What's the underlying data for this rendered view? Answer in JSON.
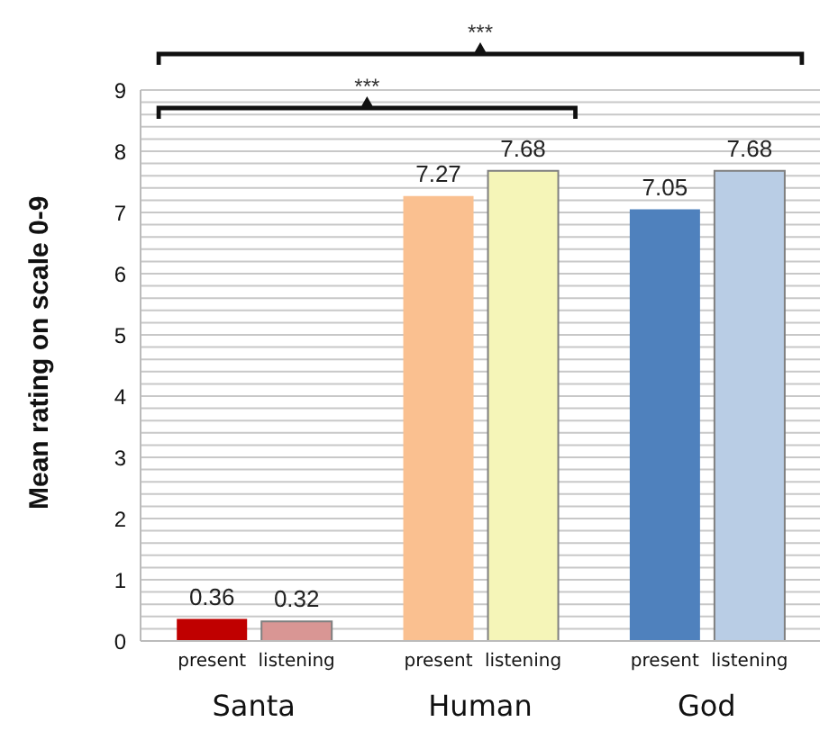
{
  "chart_data": {
    "type": "bar",
    "ylabel": "Mean rating on scale 0-9",
    "categories": [
      "Santa",
      "Human",
      "God"
    ],
    "series": [
      {
        "name": "present",
        "colors": [
          "#c00000",
          "#fac090",
          "#4f81bd"
        ],
        "values": [
          0.36,
          7.27,
          7.05
        ]
      },
      {
        "name": "listening",
        "colors": [
          "#d99694",
          "#f5f5b8",
          "#b9cde5"
        ],
        "values": [
          0.32,
          7.68,
          7.68
        ]
      }
    ],
    "ylim": [
      0,
      9
    ],
    "yticks": [
      0,
      {
        "value": 0.2,
        "label": null
      },
      {
        "value": 0.4,
        "label": null
      },
      {
        "value": 0.6,
        "label": null
      },
      {
        "value": 0.8,
        "label": null
      },
      1,
      {
        "value": 1.2,
        "label": null
      },
      {
        "value": 1.4,
        "label": null
      },
      {
        "value": 1.6,
        "label": null
      },
      {
        "value": 1.8,
        "label": null
      },
      2,
      {
        "value": 2.2,
        "label": null
      },
      {
        "value": 2.4,
        "label": null
      },
      {
        "value": 2.6,
        "label": null
      },
      {
        "value": 2.8,
        "label": null
      },
      3,
      {
        "value": 3.2,
        "label": null
      },
      {
        "value": 3.4,
        "label": null
      },
      {
        "value": 3.6,
        "label": null
      },
      {
        "value": 3.8,
        "label": null
      },
      4,
      {
        "value": 4.2,
        "label": null
      },
      {
        "value": 4.4,
        "label": null
      },
      {
        "value": 4.6,
        "label": null
      },
      {
        "value": 4.8,
        "label": null
      },
      5,
      {
        "value": 5.2,
        "label": null
      },
      {
        "value": 5.4,
        "label": null
      },
      {
        "value": 5.6,
        "label": null
      },
      {
        "value": 5.8,
        "label": null
      },
      6,
      {
        "value": 6.2,
        "label": null
      },
      {
        "value": 6.4,
        "label": null
      },
      {
        "value": 6.6,
        "label": null
      },
      {
        "value": 6.8,
        "label": null
      },
      7,
      {
        "value": 7.2,
        "label": null
      },
      {
        "value": 7.4,
        "label": null
      },
      {
        "value": 7.6,
        "label": null
      },
      {
        "value": 7.8,
        "label": null
      },
      8,
      {
        "value": 8.2,
        "label": null
      },
      {
        "value": 8.4,
        "label": null
      },
      {
        "value": 8.6,
        "label": null
      },
      {
        "value": 8.8,
        "label": null
      },
      9
    ],
    "grid": "y",
    "data_labels": true,
    "legend": false,
    "annotations": [
      "***",
      "***"
    ]
  }
}
